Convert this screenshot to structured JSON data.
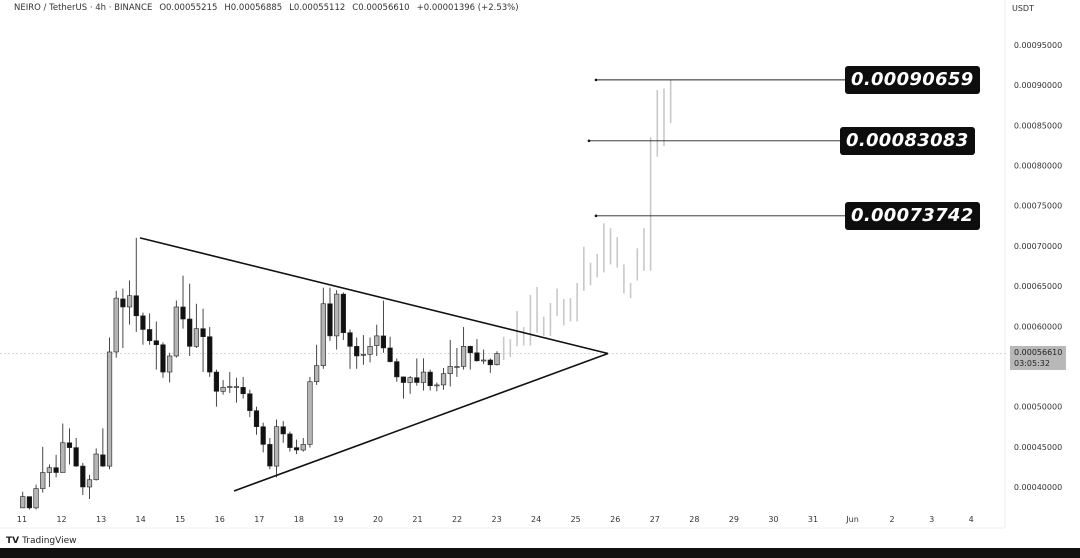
{
  "header": {
    "symbol": "NEIRO / TetherUS · 4h · BINANCE",
    "open": "O0.00055215",
    "high": "H0.00056885",
    "low": "L0.00055112",
    "close": "C0.00056610",
    "change": "+0.00001396 (+2.53%)"
  },
  "currency_label": "USDT",
  "current_price": {
    "value": "0.00056610",
    "countdown": "03:05:32"
  },
  "branding": {
    "logo_text": "TradingView"
  },
  "colors": {
    "bull": "#b5b5b5",
    "bear": "#111111",
    "projection": "#c8c8c8",
    "label_bg": "#0d0d0d",
    "trendline": "#111111"
  },
  "chart_data": {
    "type": "candlestick",
    "interval": "4h",
    "ylim": [
      0.00037,
      0.00095
    ],
    "y_ticks": [
      "0.00095000",
      "0.00090000",
      "0.00085000",
      "0.00080000",
      "0.00075000",
      "0.00070000",
      "0.00065000",
      "0.00060000",
      "0.00050000",
      "0.00045000",
      "0.00040000"
    ],
    "y_tick_values": [
      0.00095,
      0.0009,
      0.00085,
      0.0008,
      0.00075,
      0.0007,
      0.00065,
      0.0006,
      0.0005,
      0.00045,
      0.0004
    ],
    "x_ticks": [
      "11",
      "12",
      "13",
      "14",
      "15",
      "16",
      "17",
      "18",
      "19",
      "20",
      "21",
      "22",
      "23",
      "24",
      "25",
      "26",
      "27",
      "28",
      "29",
      "30",
      "31",
      "Jun",
      "2",
      "3",
      "4"
    ],
    "candles_ohlc": [
      [
        0.000374,
        0.000394,
        0.000374,
        0.000388
      ],
      [
        0.000388,
        0.000388,
        0.000372,
        0.000374
      ],
      [
        0.000374,
        0.000403,
        0.000372,
        0.000398
      ],
      [
        0.000398,
        0.00045,
        0.000393,
        0.000418
      ],
      [
        0.000418,
        0.000428,
        0.0004,
        0.000424
      ],
      [
        0.000424,
        0.00044,
        0.000412,
        0.000418
      ],
      [
        0.000418,
        0.000479,
        0.000418,
        0.000455
      ],
      [
        0.000455,
        0.000473,
        0.000428,
        0.000449
      ],
      [
        0.000449,
        0.000461,
        0.000425,
        0.000426
      ],
      [
        0.000426,
        0.00043,
        0.00039,
        0.0004
      ],
      [
        0.0004,
        0.000415,
        0.000385,
        0.000409
      ],
      [
        0.000409,
        0.000448,
        0.000408,
        0.000441
      ],
      [
        0.00044,
        0.000473,
        0.000425,
        0.000426
      ],
      [
        0.000426,
        0.000586,
        0.000422,
        0.000568
      ],
      [
        0.000568,
        0.000644,
        0.000561,
        0.000635
      ],
      [
        0.000634,
        0.000647,
        0.000573,
        0.000624
      ],
      [
        0.000624,
        0.000657,
        0.000602,
        0.000638
      ],
      [
        0.000638,
        0.00071,
        0.000593,
        0.000613
      ],
      [
        0.000613,
        0.000617,
        0.000577,
        0.000596
      ],
      [
        0.000596,
        0.000616,
        0.000577,
        0.000582
      ],
      [
        0.000582,
        0.000606,
        0.000546,
        0.000577
      ],
      [
        0.000577,
        0.00058,
        0.000536,
        0.000543
      ],
      [
        0.000543,
        0.000567,
        0.00053,
        0.000563
      ],
      [
        0.000563,
        0.000632,
        0.000561,
        0.000624
      ],
      [
        0.000624,
        0.000663,
        0.000597,
        0.000609
      ],
      [
        0.000609,
        0.000653,
        0.000563,
        0.000575
      ],
      [
        0.000575,
        0.000628,
        0.000573,
        0.000597
      ],
      [
        0.000597,
        0.000622,
        0.000543,
        0.000587
      ],
      [
        0.000587,
        0.000599,
        0.000537,
        0.000543
      ],
      [
        0.000543,
        0.000546,
        0.0005,
        0.000519
      ],
      [
        0.000519,
        0.000533,
        0.000515,
        0.000524
      ],
      [
        0.000525,
        0.000543,
        0.000517,
        0.000525
      ],
      [
        0.000525,
        0.000536,
        0.000505,
        0.000525
      ],
      [
        0.000524,
        0.000537,
        0.00051,
        0.000516
      ],
      [
        0.000516,
        0.000521,
        0.000487,
        0.000495
      ],
      [
        0.000495,
        0.0005,
        0.000465,
        0.000475
      ],
      [
        0.000475,
        0.00048,
        0.000443,
        0.000453
      ],
      [
        0.000453,
        0.000461,
        0.000422,
        0.000426
      ],
      [
        0.000426,
        0.000484,
        0.000412,
        0.000475
      ],
      [
        0.000475,
        0.000482,
        0.000455,
        0.000466
      ],
      [
        0.000466,
        0.000469,
        0.000444,
        0.000449
      ],
      [
        0.000449,
        0.000459,
        0.000441,
        0.000446
      ],
      [
        0.000446,
        0.000461,
        0.000444,
        0.000453
      ],
      [
        0.000453,
        0.000537,
        0.000449,
        0.000531
      ],
      [
        0.000531,
        0.000577,
        0.000527,
        0.000551
      ],
      [
        0.000551,
        0.000648,
        0.000547,
        0.000628
      ],
      [
        0.000628,
        0.000648,
        0.000582,
        0.000588
      ],
      [
        0.000588,
        0.000645,
        0.000571,
        0.00064
      ],
      [
        0.00064,
        0.000642,
        0.000583,
        0.000592
      ],
      [
        0.000592,
        0.000596,
        0.000547,
        0.000575
      ],
      [
        0.000575,
        0.000586,
        0.000547,
        0.000563
      ],
      [
        0.000565,
        0.000589,
        0.000552,
        0.000565
      ],
      [
        0.000565,
        0.000586,
        0.000555,
        0.000575
      ],
      [
        0.000576,
        0.000602,
        0.000563,
        0.000588
      ],
      [
        0.000588,
        0.000632,
        0.000567,
        0.000573
      ],
      [
        0.000573,
        0.000587,
        0.000555,
        0.000556
      ],
      [
        0.000556,
        0.00056,
        0.000531,
        0.000537
      ],
      [
        0.000537,
        0.000537,
        0.00051,
        0.00053
      ],
      [
        0.00053,
        0.000538,
        0.000516,
        0.000536
      ],
      [
        0.000536,
        0.00056,
        0.000526,
        0.00053
      ],
      [
        0.00053,
        0.00056,
        0.00052,
        0.000543
      ],
      [
        0.000543,
        0.000546,
        0.00052,
        0.000526
      ],
      [
        0.000527,
        0.00053,
        0.000519,
        0.000527
      ],
      [
        0.000527,
        0.000548,
        0.000521,
        0.000541
      ],
      [
        0.000541,
        0.000583,
        0.000525,
        0.00055
      ],
      [
        0.00055,
        0.000573,
        0.000537,
        0.00055
      ],
      [
        0.00055,
        0.000599,
        0.000546,
        0.000575
      ],
      [
        0.000575,
        0.000576,
        0.000546,
        0.000567
      ],
      [
        0.000567,
        0.000584,
        0.000556,
        0.000557
      ],
      [
        0.000558,
        0.000571,
        0.000553,
        0.000558
      ],
      [
        0.000558,
        0.00056,
        0.000542,
        0.000552
      ],
      [
        0.00055215,
        0.00056885,
        0.00055112,
        0.0005661
      ]
    ],
    "projection_high_low": [
      [
        0.000587,
        0.000558
      ],
      [
        0.000584,
        0.000562
      ],
      [
        0.000619,
        0.000575
      ],
      [
        0.000599,
        0.000576
      ],
      [
        0.000639,
        0.000576
      ],
      [
        0.000649,
        0.000592
      ],
      [
        0.000612,
        0.000588
      ],
      [
        0.000629,
        0.000588
      ],
      [
        0.000647,
        0.000613
      ],
      [
        0.000634,
        0.000601
      ],
      [
        0.000635,
        0.000606
      ],
      [
        0.000654,
        0.000606
      ],
      [
        0.000699,
        0.000644
      ],
      [
        0.000679,
        0.000651
      ],
      [
        0.00069,
        0.000661
      ],
      [
        0.000728,
        0.000667
      ],
      [
        0.000722,
        0.000677
      ],
      [
        0.000711,
        0.000673
      ],
      [
        0.000677,
        0.000641
      ],
      [
        0.000654,
        0.000635
      ],
      [
        0.000697,
        0.000657
      ],
      [
        0.000722,
        0.000669
      ],
      [
        0.000835,
        0.000669
      ],
      [
        0.000894,
        0.000811
      ],
      [
        0.000896,
        0.000824
      ],
      [
        0.00090659,
        0.000853
      ]
    ],
    "target_levels": [
      "0.00090659",
      "0.00083083",
      "0.00073742"
    ],
    "target_values": [
      0.00090659,
      0.00083083,
      0.00073742
    ],
    "pattern": "symmetrical triangle",
    "trendlines": [
      {
        "name": "upper",
        "from": [
          18,
          0.00071
        ],
        "to": [
          "apex",
          0.0005661
        ]
      },
      {
        "name": "lower",
        "from": [
          0,
          0.000395
        ],
        "to": [
          "apex",
          0.0005661
        ]
      }
    ],
    "grid": false
  }
}
